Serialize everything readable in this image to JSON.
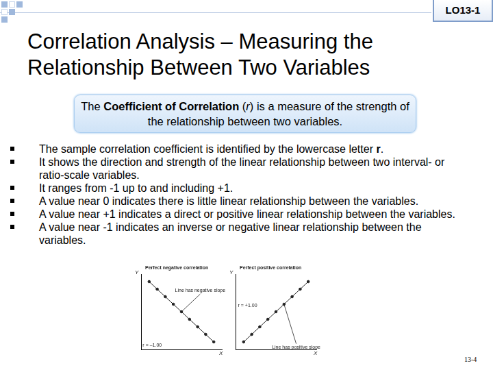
{
  "header": {
    "code": "LO13-1",
    "title": "Correlation Analysis – Measuring the Relationship Between Two Variables"
  },
  "definition": [
    {
      "text": "The "
    },
    {
      "text": "Coefficient of Correlation",
      "bold": true
    },
    {
      "text": " ("
    },
    {
      "text": "r",
      "italic": true
    },
    {
      "text": ") is a measure of the strength of the relationship between two variables."
    }
  ],
  "bullets": [
    [
      {
        "text": "The sample correlation coefficient is identified by the lowercase letter "
      },
      {
        "text": "r",
        "bold": true
      },
      {
        "text": "."
      }
    ],
    [
      {
        "text": "It shows the direction and strength of the linear relationship between two interval- or ratio-scale variables."
      }
    ],
    [
      {
        "text": "It ranges from -1 up to and including +1."
      }
    ],
    [
      {
        "text": "A value near 0 indicates there is little linear relationship between the variables."
      }
    ],
    [
      {
        "text": "A value near +1 indicates a direct or positive linear relationship between the variables."
      }
    ],
    [
      {
        "text": "A value near -1 indicates an inverse or negative linear relationship between the variables."
      }
    ]
  ],
  "chart_data": [
    {
      "type": "scatter",
      "title": "Perfect negative correlation",
      "xlabel": "X",
      "ylabel": "Y",
      "x": [
        1,
        2,
        3,
        4,
        5,
        6,
        7,
        8,
        9
      ],
      "values": [
        9,
        8,
        7,
        6,
        5,
        4,
        3,
        2,
        1
      ],
      "xlim": [
        0,
        10
      ],
      "ylim": [
        0,
        10
      ],
      "tick_labels": false,
      "grid": false,
      "marker": "circle",
      "line_style": "solid",
      "color": "#222222",
      "annotations": [
        "Line has negative slope",
        "r = –1.00"
      ]
    },
    {
      "type": "scatter",
      "title": "Perfect positive correlation",
      "xlabel": "X",
      "ylabel": "Y",
      "x": [
        1,
        2,
        3,
        4,
        5,
        6,
        7,
        8,
        9
      ],
      "values": [
        1,
        2,
        3,
        4,
        5,
        6,
        7,
        8,
        9
      ],
      "xlim": [
        0,
        10
      ],
      "ylim": [
        0,
        10
      ],
      "tick_labels": false,
      "grid": false,
      "marker": "circle",
      "line_style": "solid",
      "color": "#222222",
      "annotations": [
        "r = +1.00",
        "Line has positive slope"
      ]
    }
  ],
  "footer": "13-4"
}
